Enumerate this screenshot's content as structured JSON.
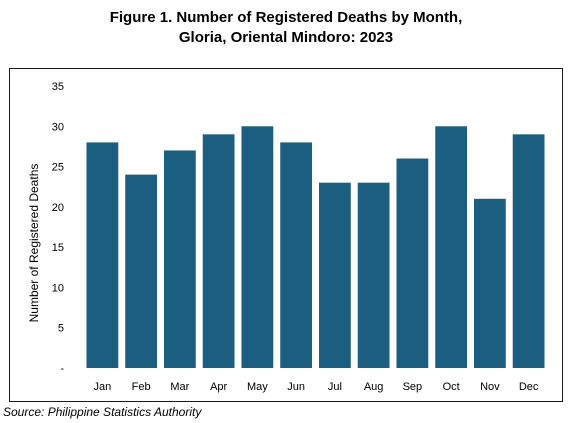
{
  "chart_data": {
    "type": "bar",
    "title_line1": "Figure 1. Number of Registered Deaths by Month,",
    "title_line2": "Gloria, Oriental Mindoro: 2023",
    "xlabel": "",
    "ylabel": "Number of Registered Deaths",
    "categories": [
      "Jan",
      "Feb",
      "Mar",
      "Apr",
      "May",
      "Jun",
      "Jul",
      "Aug",
      "Sep",
      "Oct",
      "Nov",
      "Dec"
    ],
    "values": [
      28,
      24,
      27,
      29,
      30,
      28,
      23,
      23,
      26,
      30,
      21,
      29
    ],
    "ylim": [
      0,
      35
    ],
    "yticks": [
      "-",
      "5",
      "10",
      "15",
      "20",
      "25",
      "30",
      "35"
    ],
    "grid": false,
    "legend": "none",
    "bar_color": "#1b5e80"
  },
  "source": "Source: Philippine Statistics Authority"
}
